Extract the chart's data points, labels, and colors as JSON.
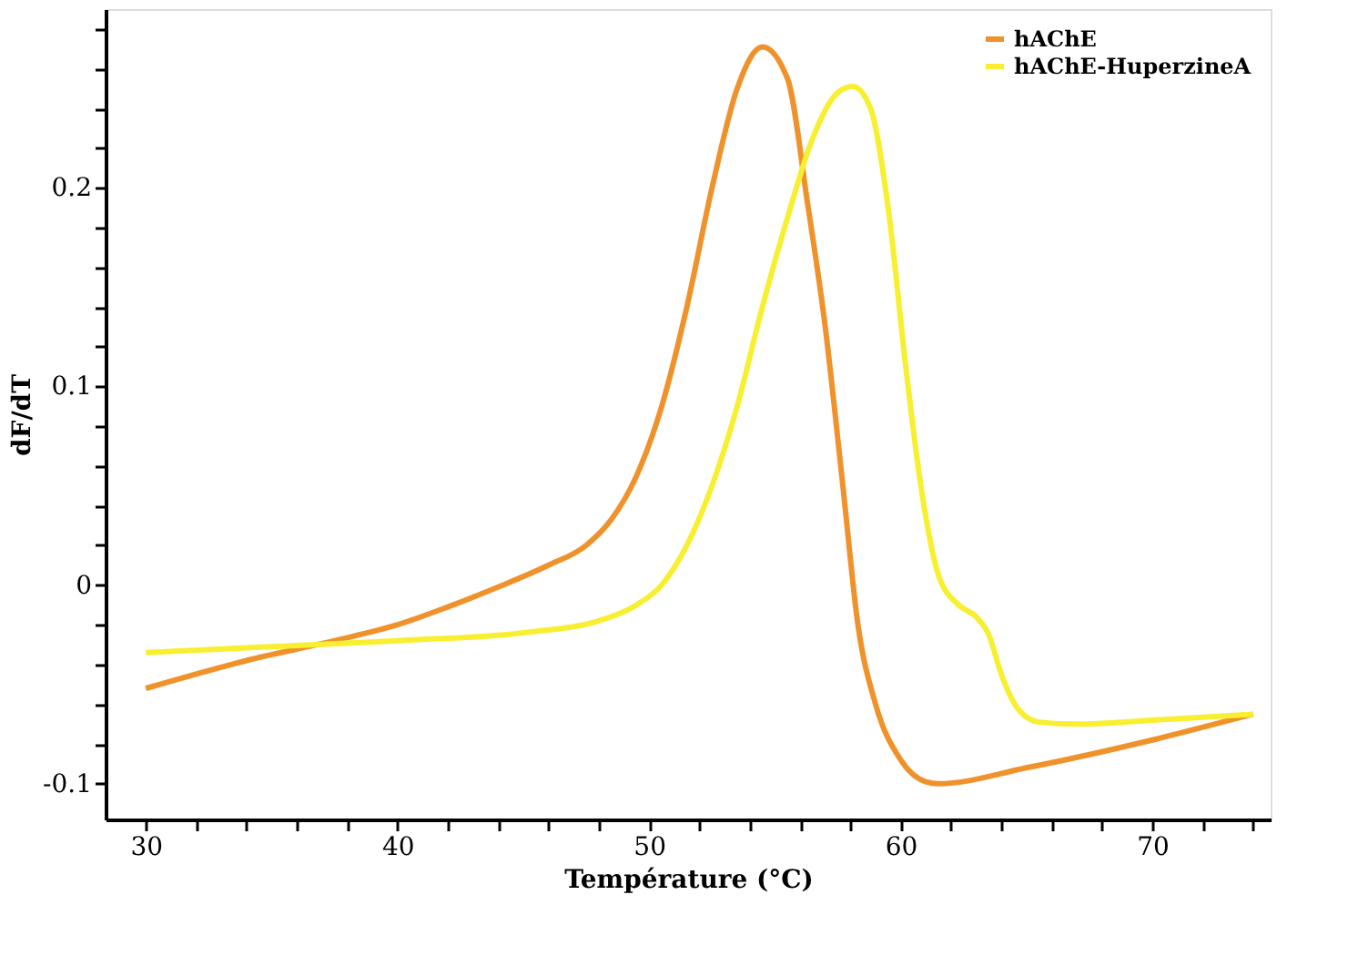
{
  "chart_data": {
    "type": "line",
    "xlabel": "Température (°C)",
    "ylabel": "dF/dT",
    "xlim": [
      28.4,
      74.7
    ],
    "ylim": [
      -0.118,
      0.29
    ],
    "xticks": [
      30,
      {
        "value": 32,
        "label": null
      },
      {
        "value": 34,
        "label": null
      },
      {
        "value": 36,
        "label": null
      },
      {
        "value": 38,
        "label": null
      },
      40,
      {
        "value": 42,
        "label": null
      },
      {
        "value": 44,
        "label": null
      },
      {
        "value": 46,
        "label": null
      },
      {
        "value": 48,
        "label": null
      },
      50,
      {
        "value": 52,
        "label": null
      },
      {
        "value": 54,
        "label": null
      },
      {
        "value": 56,
        "label": null
      },
      {
        "value": 58,
        "label": null
      },
      60,
      {
        "value": 62,
        "label": null
      },
      {
        "value": 64,
        "label": null
      },
      {
        "value": 66,
        "label": null
      },
      {
        "value": 68,
        "label": null
      },
      70,
      {
        "value": 72,
        "label": null
      },
      {
        "value": 74,
        "label": null
      }
    ],
    "yticks": [
      -0.1,
      {
        "value": -0.08,
        "label": null
      },
      {
        "value": -0.06,
        "label": null
      },
      {
        "value": -0.04,
        "label": null
      },
      {
        "value": -0.02,
        "label": null
      },
      0,
      {
        "value": 0.02,
        "label": null
      },
      {
        "value": 0.04,
        "label": null
      },
      {
        "value": 0.06,
        "label": null
      },
      {
        "value": 0.08,
        "label": null
      },
      0.1,
      {
        "value": 0.12,
        "label": null
      },
      {
        "value": 0.14,
        "label": null
      },
      {
        "value": 0.16,
        "label": null
      },
      {
        "value": 0.18,
        "label": null
      },
      0.2,
      {
        "value": 0.22,
        "label": null
      },
      {
        "value": 0.24,
        "label": null
      },
      {
        "value": 0.26,
        "label": null
      },
      {
        "value": 0.28,
        "label": null
      }
    ],
    "grid": false,
    "legend": "top right",
    "marker": "none",
    "line_style": "solid",
    "series": [
      {
        "name": "hAChE",
        "color": "#f0922b",
        "x": [
          30,
          34,
          37.5,
          40,
          42,
          44,
          46,
          47.5,
          48.5,
          49.5,
          50.5,
          51.5,
          52.5,
          53.5,
          54.5,
          55.5,
          56.3,
          57,
          57.7,
          58.3,
          59,
          60,
          61,
          61.5,
          65,
          70,
          74
        ],
        "values": [
          -0.052,
          -0.038,
          -0.028,
          -0.02,
          -0.011,
          -0.001,
          0.01,
          0.02,
          0.033,
          0.055,
          0.09,
          0.14,
          0.2,
          0.25,
          0.271,
          0.255,
          0.192,
          0.13,
          0.05,
          -0.02,
          -0.06,
          -0.088,
          -0.099,
          -0.1,
          -0.092,
          -0.078,
          -0.065
        ]
      },
      {
        "name": "hAChE-HuperzineA",
        "color": "#f7ef2f",
        "x": [
          30,
          35,
          40,
          45,
          48,
          49.5,
          50.5,
          51.5,
          52.5,
          53.5,
          54.5,
          55.5,
          56.5,
          57.5,
          58.1,
          58.8,
          59.5,
          60.2,
          60.8,
          61.5,
          62.3,
          63,
          63.5,
          64,
          64.7,
          65.5,
          67,
          70,
          74
        ],
        "values": [
          -0.034,
          -0.031,
          -0.028,
          -0.024,
          -0.018,
          -0.01,
          0.0,
          0.02,
          0.05,
          0.09,
          0.14,
          0.185,
          0.225,
          0.248,
          0.251,
          0.24,
          0.19,
          0.11,
          0.05,
          0.005,
          -0.01,
          -0.016,
          -0.025,
          -0.045,
          -0.063,
          -0.069,
          -0.07,
          -0.068,
          -0.065
        ]
      }
    ]
  }
}
